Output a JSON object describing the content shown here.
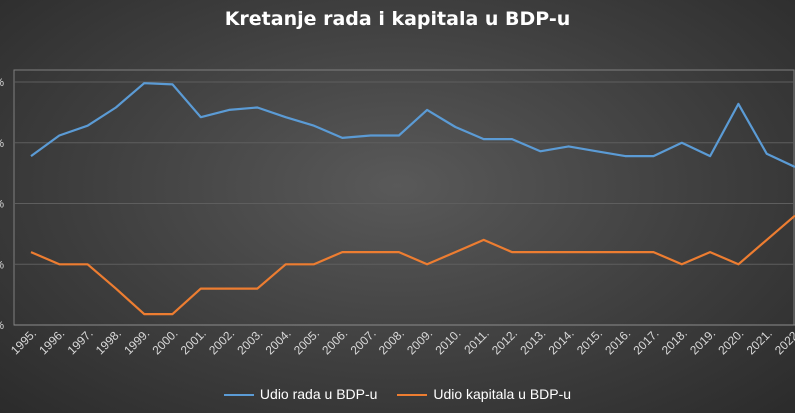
{
  "chart_data": {
    "type": "line",
    "title": "Kretanje rada i kapitala u BDP-u",
    "xlabel": "",
    "ylabel": "",
    "categories": [
      "1995.",
      "1996.",
      "1997.",
      "1998.",
      "1999.",
      "2000.",
      "2001.",
      "2002.",
      "2003.",
      "2004.",
      "2005.",
      "2006.",
      "2007.",
      "2008.",
      "2009.",
      "2010.",
      "2011.",
      "2012.",
      "2013.",
      "2014.",
      "2015.",
      "2016.",
      "2017.",
      "2018.",
      "2019.",
      "2020.",
      "2021.",
      "2022."
    ],
    "y_tick_labels": [
      "%",
      "%",
      "%",
      "%",
      "%"
    ],
    "ylim": [
      0,
      4
    ],
    "grid": true,
    "legend_position": "bottom",
    "series": [
      {
        "name": "Udio rada u BDP-u",
        "color": "#5b9bd5",
        "values": [
          2.78,
          3.12,
          3.28,
          3.58,
          3.98,
          3.96,
          3.42,
          3.54,
          3.58,
          3.42,
          3.28,
          3.08,
          3.12,
          3.12,
          3.54,
          3.26,
          3.06,
          3.06,
          2.86,
          2.94,
          2.86,
          2.78,
          2.78,
          3.0,
          2.78,
          3.64,
          2.82,
          2.6
        ]
      },
      {
        "name": "Udio kapitala u BDP-u",
        "color": "#ed7d31",
        "values": [
          1.2,
          1.0,
          1.0,
          0.6,
          0.18,
          0.18,
          0.6,
          0.6,
          0.6,
          1.0,
          1.0,
          1.2,
          1.2,
          1.2,
          1.0,
          1.2,
          1.4,
          1.2,
          1.2,
          1.2,
          1.2,
          1.2,
          1.2,
          1.0,
          1.2,
          1.0,
          1.4,
          1.8
        ]
      }
    ]
  }
}
